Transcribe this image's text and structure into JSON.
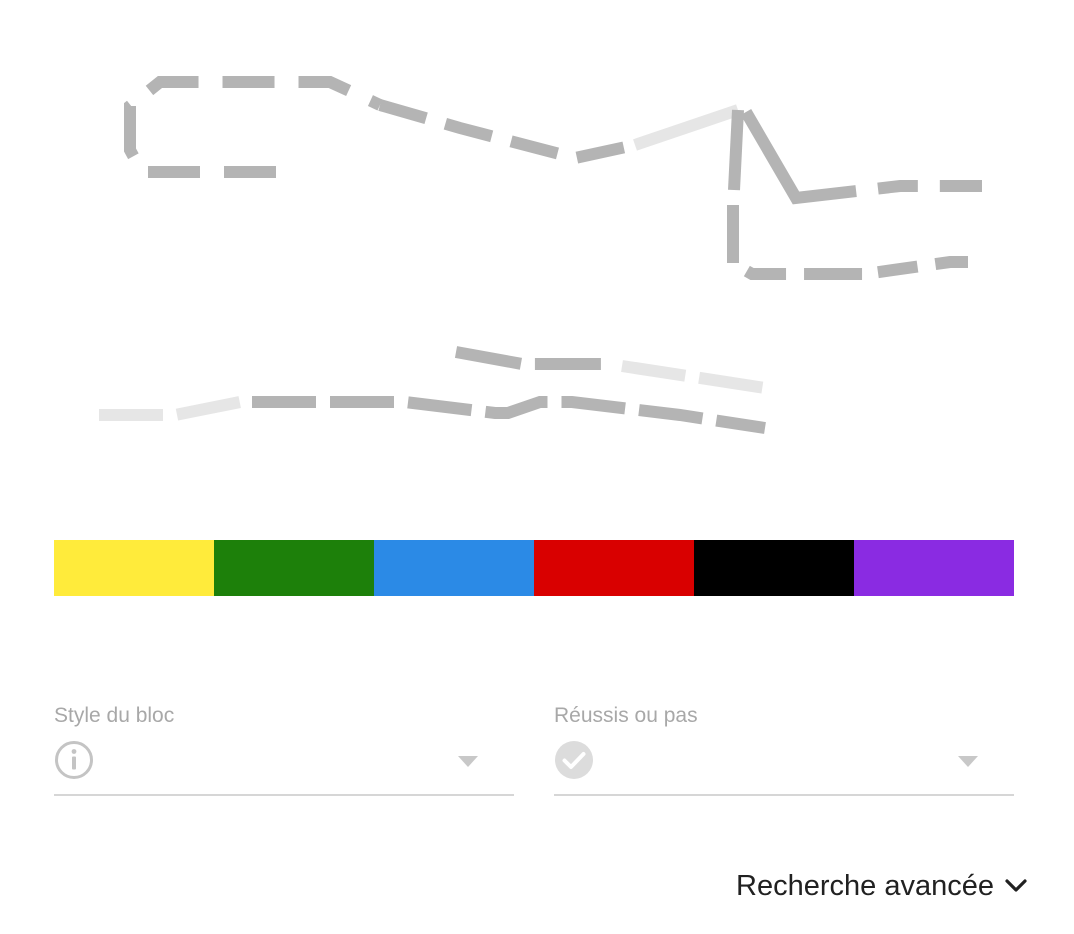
{
  "palette": {
    "colors": [
      "#ffeb3b",
      "#1d800a",
      "#2b8ae6",
      "#d90000",
      "#000000",
      "#8a2be2"
    ]
  },
  "filters": [
    {
      "label": "Style du bloc",
      "icon": "info-icon",
      "value": ""
    },
    {
      "label": "Réussis ou pas",
      "icon": "check-circle-icon",
      "value": ""
    }
  ],
  "advanced": {
    "label": "Recherche avancée",
    "icon": "chevron-down-icon"
  },
  "colors": {
    "route_dark": "#b4b4b4",
    "route_light": "#e6e6e6",
    "label": "#a8a8a8",
    "underline": "#d6d6d6",
    "text": "#212121"
  }
}
